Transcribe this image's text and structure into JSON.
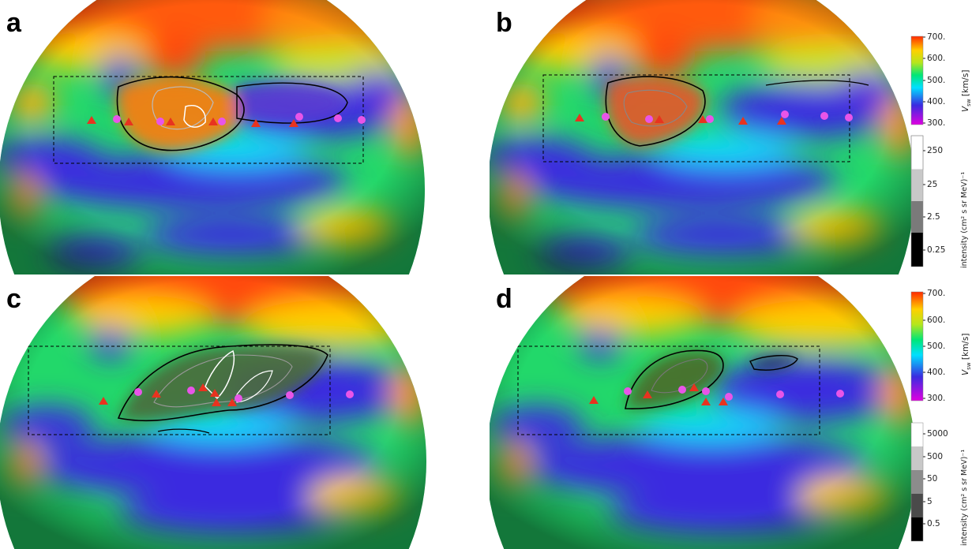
{
  "panels": [
    {
      "letter": "a"
    },
    {
      "letter": "b"
    },
    {
      "letter": "c"
    },
    {
      "letter": "d"
    }
  ],
  "colorbars": {
    "speed_top": {
      "title": "V_sw [km/s]",
      "title_main": "V",
      "title_sub": "sw",
      "title_unit": "[km/s]",
      "ticks": [
        "700.",
        "600.",
        "500.",
        "400.",
        "300."
      ]
    },
    "intensity_top": {
      "title": "intensity (cm² s sr MeV)⁻¹",
      "ticks": [
        "250",
        "25",
        "2.5",
        "0.25"
      ]
    },
    "speed_bottom": {
      "title": "V_sw [km/s]",
      "title_main": "V",
      "title_sub": "sw",
      "title_unit": "[km/s]",
      "ticks": [
        "700.",
        "600.",
        "500.",
        "400.",
        "300."
      ]
    },
    "intensity_bottom": {
      "title": "intensity (cm² s sr MeV)⁻¹",
      "ticks": [
        "5000",
        "500",
        "50",
        "5",
        "0.5"
      ]
    }
  },
  "colors": {
    "triangle": "#e8331f",
    "circle": "#e855e8",
    "speed_scale": [
      "#e000e0",
      "#3a2be0",
      "#00e0ff",
      "#00e676",
      "#b5e61d",
      "#ffd000",
      "#ff2a00"
    ],
    "intensity_scale": [
      "#000000",
      "#4a4a4a",
      "#8c8c8c",
      "#c8c8c8",
      "#ffffff"
    ]
  }
}
